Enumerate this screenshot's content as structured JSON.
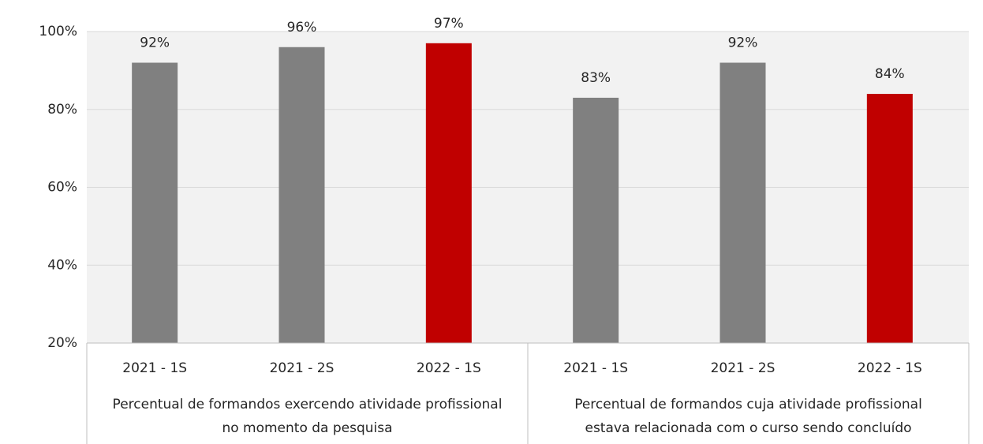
{
  "chart_data": {
    "type": "bar",
    "categories": [
      "2021 - 1S",
      "2021 - 2S",
      "2022 - 1S",
      "2021 - 1S",
      "2021 - 2S",
      "2022 - 1S"
    ],
    "groups": [
      [
        "Percentual de formandos exercendo atividade profissional",
        "no momento da pesquisa"
      ],
      [
        "Percentual de formandos cuja atividade profissional",
        "estava relacionada com o curso sendo concluído"
      ]
    ],
    "values": [
      92,
      96,
      97,
      83,
      92,
      84
    ],
    "value_labels": [
      "92%",
      "96%",
      "97%",
      "83%",
      "92%",
      "84%"
    ],
    "colors": [
      "#808080",
      "#808080",
      "#c00000",
      "#808080",
      "#808080",
      "#c00000"
    ],
    "ylim": [
      20,
      100
    ],
    "yticks": [
      {
        "value": 20,
        "label": "20%"
      },
      {
        "value": 40,
        "label": "40%"
      },
      {
        "value": 60,
        "label": "60%"
      },
      {
        "value": 80,
        "label": "80%"
      },
      {
        "value": 100,
        "label": "100%"
      }
    ],
    "grid": true
  }
}
